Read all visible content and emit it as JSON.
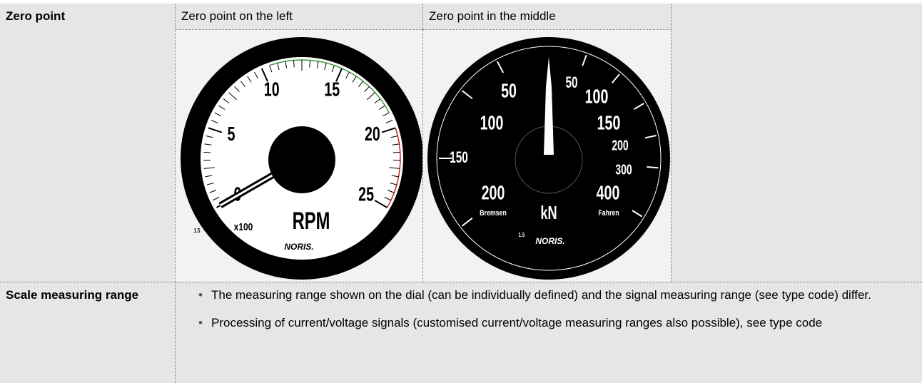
{
  "table": {
    "rows": [
      {
        "label": "Zero point",
        "cells": [
          "Zero point on the left",
          "Zero point in the middle"
        ]
      },
      {
        "label": "Scale measuring range",
        "bullets": [
          "The measuring range shown on the dial (can be individually defined) and the signal measuring range (see type code) differ.",
          "Processing of current/voltage signals (customised current/voltage measuring ranges also possible), see type code"
        ]
      }
    ]
  },
  "gauge_left": {
    "scale_labels": [
      0,
      5,
      10,
      15,
      20,
      25
    ],
    "multiplier": "x100",
    "unit": "RPM",
    "class": "1.5",
    "brand": "NORIS."
  },
  "gauge_right": {
    "left_labels": [
      50,
      100,
      150,
      200
    ],
    "right_labels": [
      50,
      100,
      150,
      200,
      300,
      400
    ],
    "unit": "kN",
    "left_caption": "Bremsen",
    "right_caption": "Fahren",
    "class": "1.5",
    "brand": "NORIS."
  }
}
